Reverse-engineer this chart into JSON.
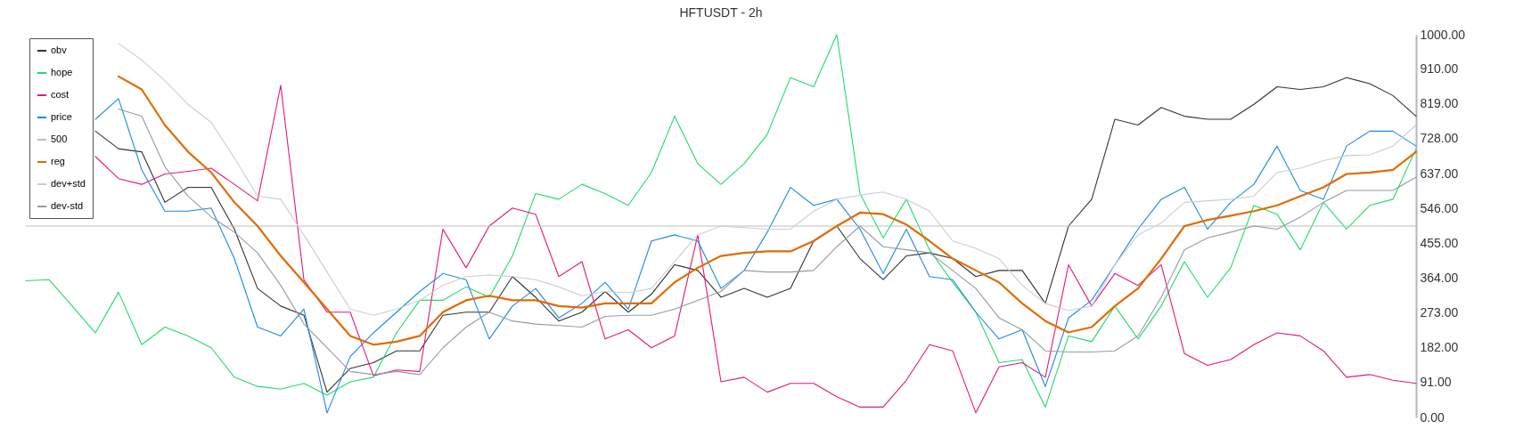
{
  "chart_data": {
    "type": "line",
    "title": "HFTUSDT - 2h",
    "categories": [
      null,
      null,
      null,
      null,
      null,
      null,
      null,
      null,
      null,
      null,
      null,
      null,
      null,
      null,
      null,
      null,
      null,
      null,
      null,
      null,
      null,
      null,
      null,
      null,
      null,
      null,
      null,
      null,
      null,
      null,
      null,
      null,
      null,
      null,
      null,
      null,
      null,
      null,
      null,
      null,
      null,
      null,
      null,
      null,
      null,
      null,
      null,
      null,
      null,
      null,
      null,
      null,
      null,
      null,
      null,
      null,
      null,
      null,
      null,
      null,
      null
    ],
    "series": [
      {
        "name": "obv",
        "color": "#333333",
        "values": [
          null,
          null,
          null,
          748,
          702,
          694,
          562,
          601,
          601,
          492,
          337,
          291,
          267,
          66,
          128,
          143,
          174,
          174,
          267,
          275,
          275,
          368,
          314,
          252,
          275,
          329,
          275,
          322,
          399,
          384,
          314,
          337,
          314,
          337,
          461,
          500,
          415,
          360,
          422,
          430,
          415,
          368,
          384,
          384,
          298,
          500,
          570,
          779,
          764,
          810,
          787,
          779,
          779,
          818,
          864,
          857,
          864,
          888,
          872,
          841,
          787
        ]
      },
      {
        "name": "hope",
        "color": "#1fdc6a",
        "values": [
          357,
          360,
          291,
          221,
          327,
          190,
          236,
          213,
          182,
          105,
          81,
          74,
          89,
          58,
          93,
          105,
          221,
          306,
          306,
          341,
          314,
          422,
          585,
          570,
          609,
          585,
          554,
          640,
          787,
          663,
          609,
          663,
          740,
          888,
          864,
          1000,
          585,
          469,
          570,
          438,
          353,
          275,
          143,
          151,
          27,
          213,
          198,
          291,
          205,
          291,
          407,
          314,
          391,
          554,
          531,
          438,
          562,
          492,
          554,
          570,
          702
        ]
      },
      {
        "name": "cost",
        "color": "#e3177c",
        "values": [
          null,
          null,
          null,
          682,
          624,
          609,
          636,
          643,
          651,
          609,
          566,
          868,
          360,
          275,
          275,
          109,
          124,
          120,
          492,
          391,
          500,
          547,
          531,
          368,
          407,
          205,
          229,
          182,
          213,
          477,
          93,
          105,
          66,
          89,
          89,
          54,
          27,
          27,
          97,
          190,
          174,
          12,
          132,
          143,
          105,
          399,
          291,
          376,
          345,
          399,
          167,
          136,
          151,
          190,
          221,
          213,
          174,
          105,
          112,
          97,
          89
        ]
      },
      {
        "name": "price",
        "color": "#1e88e5",
        "values": [
          null,
          null,
          null,
          779,
          833,
          647,
          539,
          539,
          547,
          415,
          236,
          213,
          283,
          12,
          159,
          221,
          275,
          329,
          376,
          360,
          205,
          291,
          337,
          260,
          298,
          353,
          283,
          461,
          477,
          461,
          337,
          384,
          484,
          601,
          554,
          570,
          492,
          376,
          492,
          368,
          360,
          275,
          205,
          229,
          81,
          260,
          306,
          399,
          492,
          570,
          601,
          492,
          562,
          609,
          709,
          593,
          570,
          709,
          748,
          748,
          709
        ]
      },
      {
        "name": "500",
        "color": "#bdbdbd",
        "values": [
          500,
          500,
          500,
          500,
          500,
          500,
          500,
          500,
          500,
          500,
          500,
          500,
          500,
          500,
          500,
          500,
          500,
          500,
          500,
          500,
          500,
          500,
          500,
          500,
          500,
          500,
          500,
          500,
          500,
          500,
          500,
          500,
          500,
          500,
          500,
          500,
          500,
          500,
          500,
          500,
          500,
          500,
          500,
          500,
          500,
          500,
          500,
          500,
          500,
          500,
          500,
          500,
          500,
          500,
          500,
          500,
          500,
          500,
          500,
          500,
          500
        ]
      },
      {
        "name": "reg",
        "color": "#e06c00",
        "values": [
          null,
          null,
          null,
          null,
          891,
          857,
          764,
          694,
          640,
          562,
          500,
          422,
          353,
          283,
          213,
          190,
          198,
          213,
          275,
          306,
          318,
          306,
          306,
          291,
          287,
          298,
          298,
          298,
          353,
          391,
          422,
          430,
          434,
          434,
          461,
          500,
          535,
          531,
          504,
          461,
          415,
          384,
          353,
          298,
          252,
          222,
          236,
          291,
          337,
          415,
          500,
          516,
          527,
          539,
          554,
          578,
          601,
          636,
          640,
          647,
          694
        ]
      },
      {
        "name": "dev+std",
        "color": "#c9ced3",
        "values": [
          null,
          null,
          null,
          null,
          977,
          934,
          880,
          818,
          771,
          678,
          578,
          570,
          477,
          380,
          283,
          267,
          283,
          306,
          345,
          368,
          372,
          368,
          360,
          341,
          318,
          329,
          326,
          337,
          407,
          477,
          500,
          496,
          492,
          492,
          539,
          570,
          581,
          589,
          570,
          539,
          461,
          442,
          415,
          345,
          298,
          279,
          291,
          399,
          477,
          508,
          562,
          566,
          570,
          578,
          640,
          651,
          671,
          684,
          686,
          709,
          764
        ]
      },
      {
        "name": "dev-std",
        "color": "#929ca5",
        "values": [
          null,
          null,
          null,
          null,
          806,
          787,
          655,
          578,
          524,
          484,
          430,
          345,
          244,
          182,
          120,
          112,
          120,
          112,
          182,
          236,
          275,
          252,
          244,
          240,
          236,
          264,
          267,
          267,
          283,
          306,
          329,
          384,
          380,
          380,
          384,
          446,
          500,
          446,
          438,
          430,
          384,
          337,
          260,
          229,
          174,
          171,
          171,
          174,
          213,
          314,
          438,
          469,
          484,
          500,
          492,
          523,
          562,
          593,
          593,
          593,
          628
        ]
      }
    ],
    "ylim": [
      0,
      1000
    ],
    "yticks": [
      {
        "value": 0,
        "label": "0.00"
      },
      {
        "value": 91,
        "label": "91.00"
      },
      {
        "value": 182,
        "label": "182.00"
      },
      {
        "value": 273,
        "label": "273.00"
      },
      {
        "value": 364,
        "label": "364.00"
      },
      {
        "value": 455,
        "label": "455.00"
      },
      {
        "value": 546,
        "label": "546.00"
      },
      {
        "value": 637,
        "label": "637.00"
      },
      {
        "value": 728,
        "label": "728.00"
      },
      {
        "value": 819,
        "label": "819.00"
      },
      {
        "value": 910,
        "label": "910.00"
      },
      {
        "value": 1000,
        "label": "1000.00"
      }
    ],
    "tick_labels": "y",
    "grid": false,
    "legend": "top left",
    "marker": "none",
    "line_style": "solid"
  }
}
